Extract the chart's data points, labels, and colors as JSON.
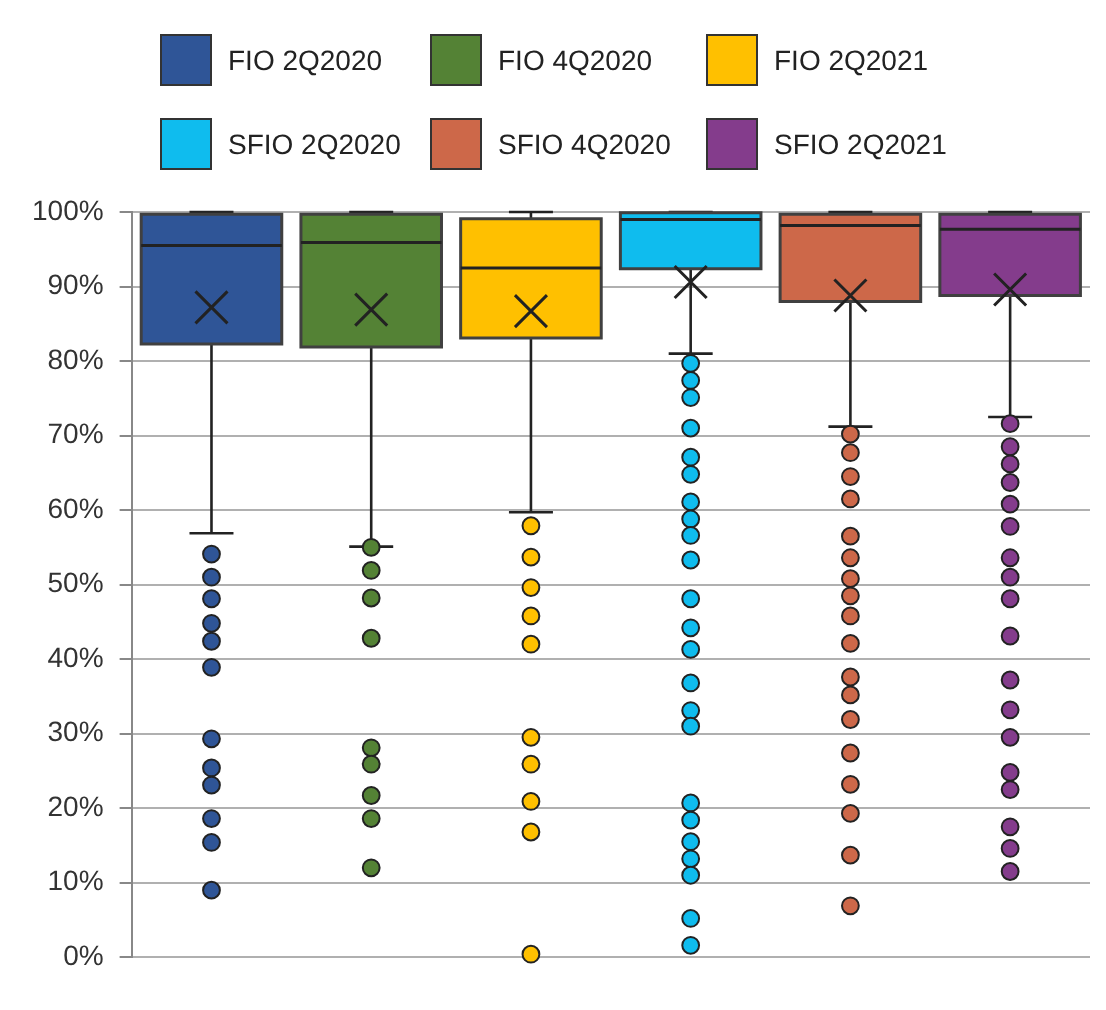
{
  "chart_data": {
    "type": "box",
    "categories": [
      null,
      null,
      null,
      null,
      null,
      null
    ],
    "ylim": [
      0,
      100
    ],
    "yticks": [
      {
        "value": 0,
        "label": "0%"
      },
      {
        "value": 10,
        "label": "10%"
      },
      {
        "value": 20,
        "label": "20%"
      },
      {
        "value": 30,
        "label": "30%"
      },
      {
        "value": 40,
        "label": "40%"
      },
      {
        "value": 50,
        "label": "50%"
      },
      {
        "value": 60,
        "label": "60%"
      },
      {
        "value": 70,
        "label": "70%"
      },
      {
        "value": 80,
        "label": "80%"
      },
      {
        "value": 90,
        "label": "90%"
      },
      {
        "value": 100,
        "label": "100%"
      }
    ],
    "grid": "y",
    "legend": "top",
    "series": [
      {
        "name": "FIO 2Q2020",
        "color": "#2f5597",
        "boxes": [
          {
            "low": 56.9,
            "q1": 82.3,
            "median": 95.5,
            "q3": 99.7,
            "high": 100,
            "mean": 87.2,
            "outliers": [
              54.1,
              51.0,
              48.1,
              44.8,
              42.4,
              38.9,
              29.3,
              25.4,
              23.1,
              18.6,
              15.4,
              9.0
            ]
          },
          null,
          null,
          null,
          null,
          null
        ]
      },
      {
        "name": "FIO 4Q2020",
        "color": "#548235",
        "boxes": [
          null,
          {
            "low": 55.1,
            "q1": 81.9,
            "median": 95.9,
            "q3": 99.7,
            "high": 100,
            "mean": 86.9,
            "outliers": [
              55.0,
              51.9,
              48.2,
              42.8,
              28.1,
              25.9,
              21.7,
              18.6,
              12.0
            ]
          },
          null,
          null,
          null,
          null
        ]
      },
      {
        "name": "FIO 2Q2021",
        "color": "#ffc000",
        "boxes": [
          null,
          null,
          {
            "low": 59.7,
            "q1": 83.1,
            "median": 92.5,
            "q3": 99.1,
            "high": 100,
            "mean": 86.7,
            "outliers": [
              57.9,
              53.7,
              49.6,
              45.8,
              42.0,
              29.5,
              25.9,
              20.9,
              16.8,
              0.4
            ]
          },
          null,
          null,
          null
        ]
      },
      {
        "name": "SFIO 2Q2020",
        "color": "#0fbcee",
        "boxes": [
          null,
          null,
          null,
          {
            "low": 81.0,
            "q1": 92.4,
            "median": 99.0,
            "q3": 99.9,
            "high": 100,
            "mean": 90.6,
            "outliers": [
              79.7,
              77.4,
              75.1,
              71.0,
              67.1,
              64.8,
              61.1,
              58.8,
              56.6,
              53.3,
              48.1,
              44.2,
              41.3,
              36.8,
              33.1,
              31.0,
              20.7,
              18.4,
              15.5,
              13.2,
              11.0,
              5.2,
              1.6
            ]
          },
          null,
          null
        ]
      },
      {
        "name": "SFIO 4Q2020",
        "color": "#cd6849",
        "boxes": [
          null,
          null,
          null,
          null,
          {
            "low": 71.2,
            "q1": 88.0,
            "median": 98.2,
            "q3": 99.7,
            "high": 100,
            "mean": 88.8,
            "outliers": [
              70.2,
              67.7,
              64.5,
              61.5,
              56.5,
              53.6,
              50.8,
              48.5,
              45.8,
              42.1,
              37.6,
              35.2,
              31.9,
              27.4,
              23.2,
              19.3,
              13.7,
              6.9
            ]
          },
          null
        ]
      },
      {
        "name": "SFIO 2Q2021",
        "color": "#843c8c",
        "boxes": [
          null,
          null,
          null,
          null,
          null,
          {
            "low": 72.5,
            "q1": 88.8,
            "median": 97.7,
            "q3": 99.7,
            "high": 100,
            "mean": 89.6,
            "outliers": [
              71.6,
              68.5,
              66.2,
              63.7,
              60.8,
              57.8,
              53.6,
              51.0,
              48.1,
              43.1,
              37.2,
              33.2,
              29.5,
              24.8,
              22.5,
              17.5,
              14.6,
              11.5
            ]
          }
        ]
      }
    ]
  }
}
